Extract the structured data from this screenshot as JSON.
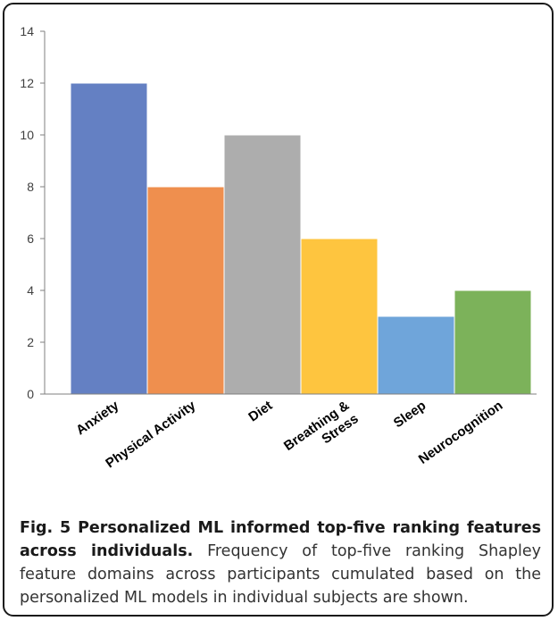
{
  "chart_data": {
    "type": "bar",
    "categories": [
      "Anxiety",
      "Physical Activity",
      "Diet",
      "Breathing &\nStress",
      "Sleep",
      "Neurocognition"
    ],
    "values": [
      12,
      8,
      10,
      6,
      3,
      4
    ],
    "colors": [
      "#6480c3",
      "#ef8f4e",
      "#adadad",
      "#fec53f",
      "#6fa5da",
      "#7cb25a"
    ],
    "ylim": [
      0,
      14
    ],
    "yticks": [
      0,
      2,
      4,
      6,
      8,
      10,
      12,
      14
    ],
    "title": "",
    "xlabel": "",
    "ylabel": "",
    "grid": false,
    "legend": "none"
  },
  "caption": {
    "lead": "Fig. 5 Personalized ML informed top-five ranking features across individuals.",
    "text": " Frequency of top-five ranking Shapley feature domains across participants cumulated based on the personalized ML models in individual subjects are shown."
  }
}
